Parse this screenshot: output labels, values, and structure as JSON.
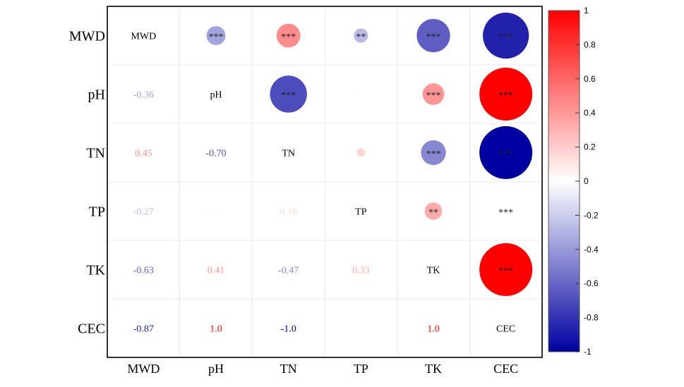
{
  "chart_data": {
    "type": "heatmap",
    "subtype": "correlation-matrix",
    "variables": [
      "MWD",
      "pH",
      "TN",
      "TP",
      "TK",
      "CEC"
    ],
    "matrix": [
      [
        1.0,
        -0.36,
        0.45,
        -0.27,
        -0.63,
        -0.87
      ],
      [
        -0.36,
        1.0,
        -0.7,
        0.03,
        0.41,
        1.0
      ],
      [
        0.45,
        -0.7,
        1.0,
        0.16,
        -0.47,
        -1.0
      ],
      [
        -0.27,
        0.03,
        0.16,
        1.0,
        0.33,
        0.0
      ],
      [
        -0.63,
        0.41,
        -0.47,
        0.33,
        1.0,
        1.0
      ],
      [
        -0.87,
        1.0,
        -1.0,
        0.0,
        1.0,
        1.0
      ]
    ],
    "lower_labels": [
      [
        null,
        null,
        null,
        null,
        null,
        null
      ],
      [
        "-0.36",
        null,
        null,
        null,
        null,
        null
      ],
      [
        "0.45",
        "-0.70",
        null,
        null,
        null,
        null
      ],
      [
        "-0.27",
        "0.03",
        "0.16",
        null,
        null,
        null
      ],
      [
        "-0.63",
        "0.41",
        "-0.47",
        "0.33",
        null,
        null
      ],
      [
        "-0.87",
        "1.0",
        "-1.0",
        "",
        "1.0",
        null
      ]
    ],
    "upper_significance": [
      [
        null,
        "***",
        "***",
        "**",
        "***",
        "***"
      ],
      [
        null,
        null,
        "***",
        "",
        "***",
        "***"
      ],
      [
        null,
        null,
        null,
        "",
        "***",
        "***"
      ],
      [
        null,
        null,
        null,
        null,
        "**",
        "***"
      ],
      [
        null,
        null,
        null,
        null,
        null,
        "***"
      ],
      [
        null,
        null,
        null,
        null,
        null,
        null
      ]
    ],
    "colorbar": {
      "range": [
        -1,
        1
      ],
      "ticks": [
        {
          "value": 1,
          "label": "1"
        },
        {
          "value": 0.8,
          "label": "0.8"
        },
        {
          "value": 0.6,
          "label": "0.6"
        },
        {
          "value": 0.4,
          "label": "0.4"
        },
        {
          "value": 0.2,
          "label": "0.2"
        },
        {
          "value": 0,
          "label": "0"
        },
        {
          "value": -0.2,
          "label": "-0.2"
        },
        {
          "value": -0.4,
          "label": "-0.4"
        },
        {
          "value": -0.6,
          "label": "-0.6"
        },
        {
          "value": -0.8,
          "label": "-0.8"
        },
        {
          "value": -1,
          "label": "-1"
        }
      ],
      "colors": {
        "negative": "#0000a0",
        "neutral": "#ffffff",
        "positive": "#ff0000"
      }
    },
    "legend_position": "right",
    "grid": true
  }
}
